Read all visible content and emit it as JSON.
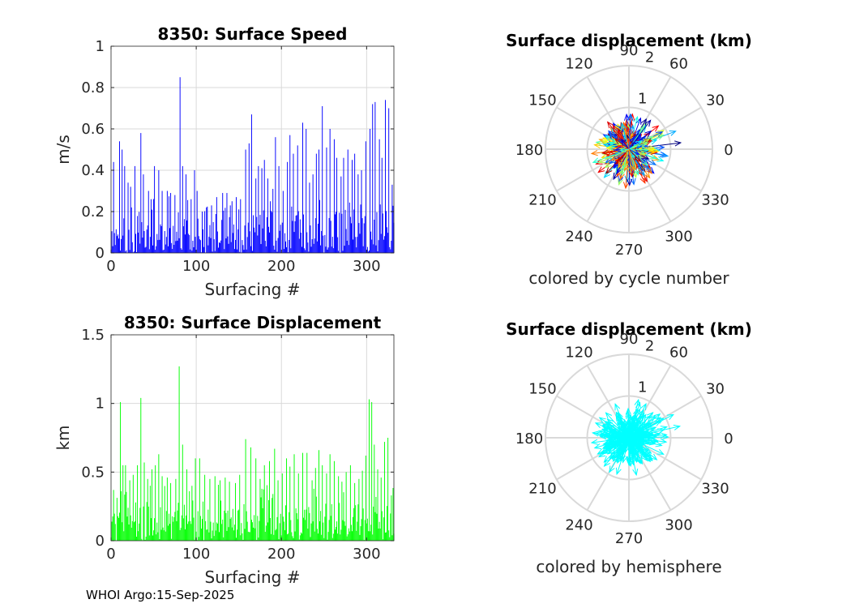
{
  "footer": "WHOI Argo:15-Sep-2025",
  "colors": {
    "speed_bars": "#0000ff",
    "displacement_bars": "#00ff00",
    "hemisphere_arrows": "#00ffff",
    "grid": "#d9d9d9"
  },
  "chart_data": [
    {
      "id": "speed",
      "type": "bar",
      "title": "8350: Surface Speed",
      "xlabel": "Surfacing #",
      "ylabel": "m/s",
      "xlim": [
        0,
        332
      ],
      "ylim": [
        0,
        1
      ],
      "xticks": [
        0,
        100,
        200,
        300
      ],
      "yticks": [
        0,
        0.2,
        0.4,
        0.6,
        0.8,
        1
      ],
      "ytick_labels": [
        "0",
        "0.2",
        "0.4",
        "0.6",
        "0.8",
        "1"
      ],
      "color": "#0000ff",
      "n": 332,
      "seed": 8350,
      "typical_max": 0.3,
      "peaks": [
        [
          3,
          0.44
        ],
        [
          10,
          0.54
        ],
        [
          13,
          0.5
        ],
        [
          16,
          0.42
        ],
        [
          20,
          0.34
        ],
        [
          23,
          0.32
        ],
        [
          28,
          0.42
        ],
        [
          35,
          0.58
        ],
        [
          38,
          0.38
        ],
        [
          44,
          0.3
        ],
        [
          47,
          0.26
        ],
        [
          51,
          0.42
        ],
        [
          56,
          0.4
        ],
        [
          60,
          0.3
        ],
        [
          66,
          0.3
        ],
        [
          70,
          0.29
        ],
        [
          75,
          0.28
        ],
        [
          81,
          0.85
        ],
        [
          84,
          0.42
        ],
        [
          88,
          0.38
        ],
        [
          94,
          0.26
        ],
        [
          98,
          0.4
        ],
        [
          101,
          0.3
        ],
        [
          107,
          0.2
        ],
        [
          112,
          0.22
        ],
        [
          118,
          0.23
        ],
        [
          124,
          0.27
        ],
        [
          131,
          0.29
        ],
        [
          136,
          0.29
        ],
        [
          142,
          0.25
        ],
        [
          147,
          0.27
        ],
        [
          152,
          0.26
        ],
        [
          158,
          0.5
        ],
        [
          162,
          0.53
        ],
        [
          165,
          0.67
        ],
        [
          170,
          0.36
        ],
        [
          173,
          0.42
        ],
        [
          177,
          0.41
        ],
        [
          180,
          0.45
        ],
        [
          184,
          0.36
        ],
        [
          187,
          0.25
        ],
        [
          190,
          0.31
        ],
        [
          193,
          0.56
        ],
        [
          197,
          0.42
        ],
        [
          202,
          0.3
        ],
        [
          207,
          0.44
        ],
        [
          210,
          0.57
        ],
        [
          214,
          0.48
        ],
        [
          219,
          0.52
        ],
        [
          225,
          0.63
        ],
        [
          229,
          0.6
        ],
        [
          233,
          0.34
        ],
        [
          237,
          0.38
        ],
        [
          241,
          0.48
        ],
        [
          244,
          0.5
        ],
        [
          248,
          0.71
        ],
        [
          253,
          0.51
        ],
        [
          257,
          0.6
        ],
        [
          262,
          0.55
        ],
        [
          265,
          0.46
        ],
        [
          270,
          0.37
        ],
        [
          273,
          0.46
        ],
        [
          278,
          0.5
        ],
        [
          283,
          0.45
        ],
        [
          286,
          0.48
        ],
        [
          290,
          0.38
        ],
        [
          294,
          0.4
        ],
        [
          299,
          0.54
        ],
        [
          304,
          0.6
        ],
        [
          307,
          0.72
        ],
        [
          310,
          0.73
        ],
        [
          315,
          0.55
        ],
        [
          318,
          0.46
        ],
        [
          322,
          0.74
        ],
        [
          326,
          0.7
        ],
        [
          330,
          0.33
        ]
      ]
    },
    {
      "id": "displacement",
      "type": "bar",
      "title": "8350: Surface Displacement",
      "xlabel": "Surfacing #",
      "ylabel": "km",
      "xlim": [
        0,
        332
      ],
      "ylim": [
        0,
        1.5
      ],
      "xticks": [
        0,
        100,
        200,
        300
      ],
      "yticks": [
        0,
        0.5,
        1,
        1.5
      ],
      "ytick_labels": [
        "0",
        "0.5",
        "1",
        "1.5"
      ],
      "color": "#00ff00",
      "n": 332,
      "seed": 4177,
      "typical_max": 0.45,
      "peaks": [
        [
          3,
          0.37
        ],
        [
          11,
          1.01
        ],
        [
          14,
          0.55
        ],
        [
          17,
          0.55
        ],
        [
          22,
          0.44
        ],
        [
          26,
          0.48
        ],
        [
          31,
          0.55
        ],
        [
          35,
          1.04
        ],
        [
          39,
          0.57
        ],
        [
          43,
          0.45
        ],
        [
          48,
          0.52
        ],
        [
          52,
          0.55
        ],
        [
          56,
          0.63
        ],
        [
          60,
          0.47
        ],
        [
          66,
          0.46
        ],
        [
          70,
          0.42
        ],
        [
          76,
          0.45
        ],
        [
          80,
          1.27
        ],
        [
          84,
          0.7
        ],
        [
          89,
          0.52
        ],
        [
          95,
          0.4
        ],
        [
          99,
          0.6
        ],
        [
          104,
          0.6
        ],
        [
          110,
          0.48
        ],
        [
          116,
          0.45
        ],
        [
          122,
          0.47
        ],
        [
          128,
          0.44
        ],
        [
          134,
          0.46
        ],
        [
          139,
          0.43
        ],
        [
          146,
          0.42
        ],
        [
          151,
          0.48
        ],
        [
          158,
          0.74
        ],
        [
          164,
          0.68
        ],
        [
          170,
          0.6
        ],
        [
          175,
          0.45
        ],
        [
          180,
          0.55
        ],
        [
          186,
          0.58
        ],
        [
          192,
          0.67
        ],
        [
          196,
          0.44
        ],
        [
          201,
          0.49
        ],
        [
          206,
          0.6
        ],
        [
          210,
          0.54
        ],
        [
          215,
          0.63
        ],
        [
          220,
          0.49
        ],
        [
          225,
          0.64
        ],
        [
          230,
          0.64
        ],
        [
          236,
          0.44
        ],
        [
          240,
          0.53
        ],
        [
          244,
          0.66
        ],
        [
          248,
          0.55
        ],
        [
          253,
          0.49
        ],
        [
          257,
          0.63
        ],
        [
          262,
          0.58
        ],
        [
          267,
          0.47
        ],
        [
          271,
          0.43
        ],
        [
          276,
          0.5
        ],
        [
          281,
          0.55
        ],
        [
          286,
          0.42
        ],
        [
          291,
          0.45
        ],
        [
          295,
          0.51
        ],
        [
          299,
          0.62
        ],
        [
          303,
          1.03
        ],
        [
          306,
          1.01
        ],
        [
          309,
          0.7
        ],
        [
          313,
          0.52
        ],
        [
          317,
          0.46
        ],
        [
          321,
          0.72
        ],
        [
          325,
          0.75
        ],
        [
          329,
          0.33
        ]
      ]
    },
    {
      "id": "polar-cycle",
      "type": "polar-quiver",
      "title": "Surface displacement (km)",
      "caption": "colored by cycle number",
      "rmax": 2,
      "r_ticks": [
        1,
        2
      ],
      "angle_labels": [
        "0",
        "30",
        "60",
        "90",
        "120",
        "150",
        "180",
        "210",
        "240",
        "270",
        "300",
        "330"
      ],
      "color_mode": "cycle",
      "colormap": "jet",
      "n": 332,
      "seed": 8350
    },
    {
      "id": "polar-hemisphere",
      "type": "polar-quiver",
      "title": "Surface displacement (km)",
      "caption": "colored by hemisphere",
      "rmax": 2,
      "r_ticks": [
        1,
        2
      ],
      "angle_labels": [
        "0",
        "30",
        "60",
        "90",
        "120",
        "150",
        "180",
        "210",
        "240",
        "270",
        "300",
        "330"
      ],
      "color_mode": "hemisphere",
      "color": "#00ffff",
      "n": 332,
      "seed": 4177
    }
  ]
}
